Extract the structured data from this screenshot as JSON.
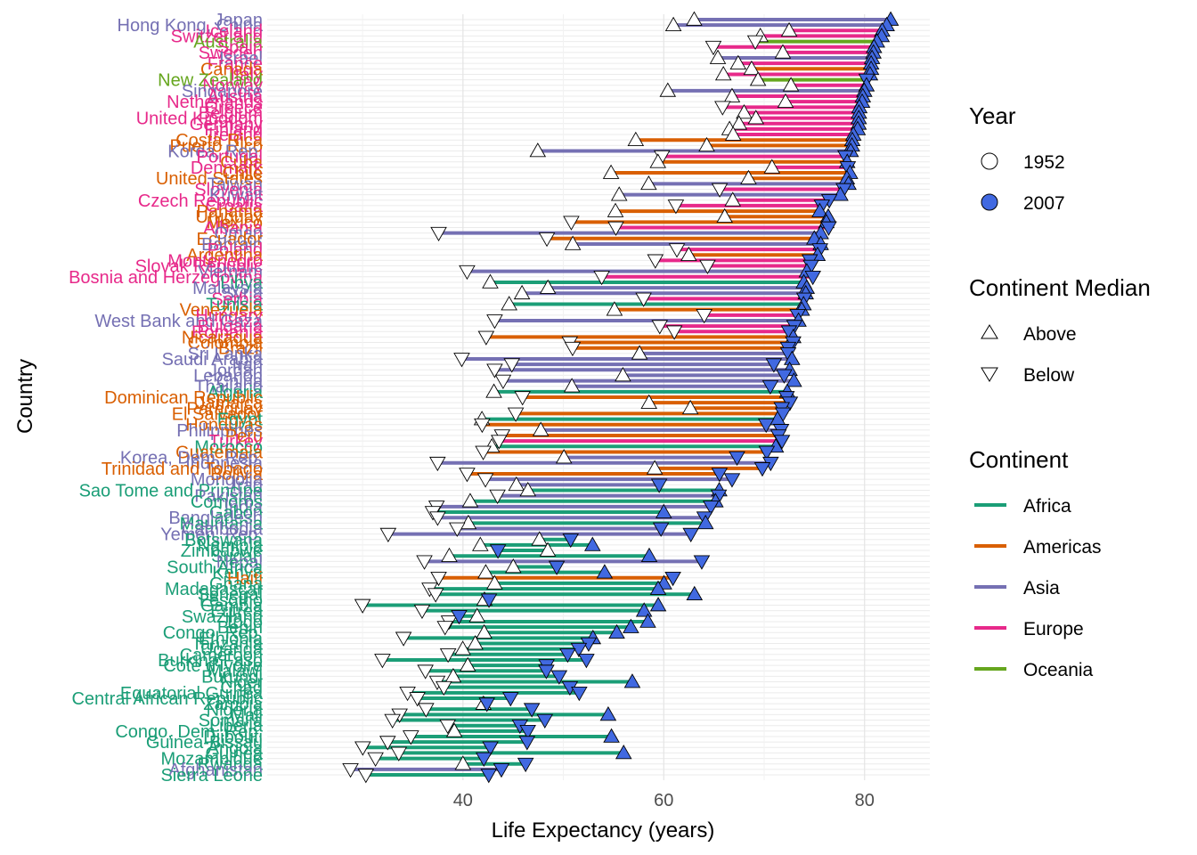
{
  "chart_data": {
    "type": "dumbbell",
    "xlabel": "Life Expectancy (years)",
    "ylabel": "Country",
    "xlim": [
      20.5,
      86.5
    ],
    "xticks": [
      40,
      60,
      80
    ],
    "tick_labels": [
      "40",
      "60",
      "80"
    ],
    "grid": true,
    "legend_position": "right",
    "continent_colors": {
      "Africa": "#1b9e77",
      "Americas": "#d95f02",
      "Asia": "#7570b3",
      "Europe": "#e7298a",
      "Oceania": "#66a61e"
    },
    "year_2007_color": "#4169e1",
    "legend": {
      "year": {
        "title": "Year",
        "items": [
          "1952",
          "2007"
        ]
      },
      "median": {
        "title": "Continent Median",
        "items": [
          "Above",
          "Below"
        ]
      },
      "continent": {
        "title": "Continent",
        "items": [
          "Africa",
          "Americas",
          "Asia",
          "Europe",
          "Oceania"
        ]
      }
    },
    "countries": [
      [
        "Japan",
        "Asia",
        63.03,
        82.603
      ],
      [
        "Hong Kong, China",
        "Asia",
        60.96,
        82.208
      ],
      [
        "Iceland",
        "Europe",
        72.49,
        81.757
      ],
      [
        "Switzerland",
        "Europe",
        69.62,
        81.701
      ],
      [
        "Australia",
        "Oceania",
        69.12,
        81.235
      ],
      [
        "Spain",
        "Europe",
        64.94,
        80.941
      ],
      [
        "Sweden",
        "Europe",
        71.86,
        80.884
      ],
      [
        "Israel",
        "Asia",
        65.39,
        80.745
      ],
      [
        "France",
        "Europe",
        67.41,
        80.657
      ],
      [
        "Canada",
        "Americas",
        68.75,
        80.653
      ],
      [
        "Italy",
        "Europe",
        65.94,
        80.546
      ],
      [
        "New Zealand",
        "Oceania",
        69.39,
        80.204
      ],
      [
        "Norway",
        "Europe",
        72.67,
        80.196
      ],
      [
        "Singapore",
        "Asia",
        60.4,
        79.972
      ],
      [
        "Austria",
        "Europe",
        66.8,
        79.829
      ],
      [
        "Netherlands",
        "Europe",
        72.13,
        79.762
      ],
      [
        "Greece",
        "Europe",
        65.86,
        79.483
      ],
      [
        "Belgium",
        "Europe",
        68.0,
        79.441
      ],
      [
        "United Kingdom",
        "Europe",
        69.18,
        79.425
      ],
      [
        "Germany",
        "Europe",
        67.5,
        79.406
      ],
      [
        "Finland",
        "Europe",
        66.55,
        79.313
      ],
      [
        "Ireland",
        "Europe",
        66.91,
        78.885
      ],
      [
        "Costa Rica",
        "Americas",
        57.21,
        78.782
      ],
      [
        "Puerto Rico",
        "Americas",
        64.28,
        78.746
      ],
      [
        "Korea, Rep.",
        "Asia",
        47.45,
        78.623
      ],
      [
        "Portugal",
        "Europe",
        59.82,
        78.098
      ],
      [
        "Cuba",
        "Americas",
        59.42,
        78.273
      ],
      [
        "Denmark",
        "Europe",
        70.78,
        78.332
      ],
      [
        "Chile",
        "Americas",
        54.75,
        78.553
      ],
      [
        "United States",
        "Americas",
        68.44,
        78.242
      ],
      [
        "Taiwan",
        "Asia",
        58.5,
        78.4
      ],
      [
        "Slovenia",
        "Europe",
        65.57,
        77.926
      ],
      [
        "Kuwait",
        "Asia",
        55.56,
        77.588
      ],
      [
        "Czech Republic",
        "Europe",
        66.87,
        76.486
      ],
      [
        "Croatia",
        "Europe",
        61.21,
        75.748
      ],
      [
        "Panama",
        "Americas",
        55.19,
        75.537
      ],
      [
        "Uruguay",
        "Americas",
        66.07,
        76.384
      ],
      [
        "Mexico",
        "Americas",
        50.79,
        76.195
      ],
      [
        "Albania",
        "Europe",
        55.23,
        76.423
      ],
      [
        "Oman",
        "Asia",
        37.58,
        75.64
      ],
      [
        "Ecuador",
        "Americas",
        48.36,
        74.994
      ],
      [
        "Bahrain",
        "Asia",
        50.94,
        75.635
      ],
      [
        "Poland",
        "Europe",
        61.31,
        75.563
      ],
      [
        "Argentina",
        "Americas",
        62.49,
        75.32
      ],
      [
        "Montenegro",
        "Europe",
        59.16,
        74.543
      ],
      [
        "Slovak Republic",
        "Europe",
        64.36,
        74.663
      ],
      [
        "Vietnam",
        "Asia",
        40.41,
        74.249
      ],
      [
        "Bosnia and Herzegovina",
        "Europe",
        53.82,
        74.852
      ],
      [
        "Libya",
        "Africa",
        42.72,
        73.952
      ],
      [
        "Malaysia",
        "Asia",
        48.46,
        74.241
      ],
      [
        "Syria",
        "Asia",
        45.88,
        74.143
      ],
      [
        "Serbia",
        "Europe",
        57.99,
        74.002
      ],
      [
        "Tunisia",
        "Africa",
        44.6,
        73.923
      ],
      [
        "Venezuela",
        "Americas",
        55.09,
        73.747
      ],
      [
        "Hungary",
        "Europe",
        64.03,
        73.338
      ],
      [
        "West Bank and Gaza",
        "Asia",
        43.16,
        73.422
      ],
      [
        "Bulgaria",
        "Europe",
        59.6,
        73.005
      ],
      [
        "Romania",
        "Europe",
        61.05,
        72.476
      ],
      [
        "Nicaragua",
        "Americas",
        42.31,
        72.899
      ],
      [
        "Colombia",
        "Americas",
        50.64,
        72.889
      ],
      [
        "Brazil",
        "Americas",
        50.92,
        72.39
      ],
      [
        "Sri Lanka",
        "Asia",
        57.59,
        72.396
      ],
      [
        "Saudi Arabia",
        "Asia",
        39.88,
        72.777
      ],
      [
        "Iran",
        "Asia",
        44.87,
        70.964
      ],
      [
        "Jordan",
        "Asia",
        43.16,
        72.535
      ],
      [
        "Lebanon",
        "Asia",
        55.93,
        71.993
      ],
      [
        "China",
        "Asia",
        44.0,
        72.961
      ],
      [
        "Thailand",
        "Asia",
        50.85,
        70.616
      ],
      [
        "Algeria",
        "Africa",
        43.08,
        72.301
      ],
      [
        "Dominican Republic",
        "Americas",
        45.93,
        72.235
      ],
      [
        "Jamaica",
        "Americas",
        58.53,
        72.567
      ],
      [
        "Paraguay",
        "Americas",
        62.65,
        71.752
      ],
      [
        "El Salvador",
        "Americas",
        45.26,
        71.878
      ],
      [
        "Egypt",
        "Africa",
        41.89,
        71.338
      ],
      [
        "Honduras",
        "Americas",
        41.91,
        70.198
      ],
      [
        "Philippines",
        "Asia",
        47.75,
        71.688
      ],
      [
        "Peru",
        "Americas",
        43.9,
        71.421
      ],
      [
        "Turkey",
        "Europe",
        43.59,
        71.777
      ],
      [
        "Morocco",
        "Africa",
        42.87,
        71.164
      ],
      [
        "Guatemala",
        "Americas",
        42.02,
        70.259
      ],
      [
        "Korea, Dem. Rep.",
        "Asia",
        50.06,
        67.297
      ],
      [
        "Indonesia",
        "Asia",
        37.47,
        70.65
      ],
      [
        "Trinidad and Tobago",
        "Americas",
        59.1,
        69.819
      ],
      [
        "Bolivia",
        "Americas",
        40.41,
        65.554
      ],
      [
        "Mongolia",
        "Asia",
        42.24,
        66.803
      ],
      [
        "Iraq",
        "Asia",
        45.32,
        59.545
      ],
      [
        "Sao Tome and Principe",
        "Africa",
        46.47,
        65.528
      ],
      [
        "Pakistan",
        "Asia",
        43.44,
        65.483
      ],
      [
        "Comoros",
        "Africa",
        40.72,
        65.152
      ],
      [
        "India",
        "Asia",
        37.37,
        64.698
      ],
      [
        "Gabon",
        "Africa",
        37.0,
        60.0
      ],
      [
        "Bangladesh",
        "Asia",
        37.48,
        64.062
      ],
      [
        "Mauritania",
        "Africa",
        40.54,
        64.164
      ],
      [
        "Cambodia",
        "Asia",
        39.42,
        59.723
      ],
      [
        "Yemen, Rep.",
        "Asia",
        32.55,
        62.698
      ],
      [
        "Botswana",
        "Africa",
        47.62,
        50.728
      ],
      [
        "Namibia",
        "Africa",
        41.73,
        52.906
      ],
      [
        "Zimbabwe",
        "Africa",
        48.45,
        43.487
      ],
      [
        "Sudan",
        "Africa",
        38.64,
        58.556
      ],
      [
        "Nepal",
        "Asia",
        36.16,
        63.785
      ],
      [
        "South Africa",
        "Africa",
        45.01,
        49.339
      ],
      [
        "Kenya",
        "Africa",
        42.27,
        54.11
      ],
      [
        "Haiti",
        "Americas",
        37.58,
        60.916
      ],
      [
        "Ghana",
        "Africa",
        43.15,
        60.022
      ],
      [
        "Madagascar",
        "Africa",
        36.68,
        59.443
      ],
      [
        "Senegal",
        "Africa",
        37.28,
        63.062
      ],
      [
        "Lesotho",
        "Africa",
        42.14,
        42.592
      ],
      [
        "Gambia",
        "Africa",
        30.0,
        59.448
      ],
      [
        "Eritrea",
        "Africa",
        35.93,
        58.04
      ],
      [
        "Swaziland",
        "Africa",
        41.41,
        39.613
      ],
      [
        "Togo",
        "Africa",
        38.6,
        58.42
      ],
      [
        "Benin",
        "Africa",
        38.22,
        56.728
      ],
      [
        "Congo, Rep.",
        "Africa",
        42.11,
        55.322
      ],
      [
        "Ethiopia",
        "Africa",
        34.08,
        52.947
      ],
      [
        "Tanzania",
        "Africa",
        41.22,
        52.517
      ],
      [
        "Uganda",
        "Africa",
        39.98,
        51.542
      ],
      [
        "Cameroon",
        "Africa",
        38.52,
        50.43
      ],
      [
        "Burkina Faso",
        "Africa",
        31.98,
        52.295
      ],
      [
        "Cote d'Ivoire",
        "Africa",
        40.48,
        48.328
      ],
      [
        "Malawi",
        "Africa",
        36.26,
        48.303
      ],
      [
        "Burundi",
        "Africa",
        39.03,
        49.58
      ],
      [
        "Niger",
        "Africa",
        37.44,
        56.867
      ],
      [
        "Chad",
        "Africa",
        38.09,
        50.651
      ],
      [
        "Equatorial Guinea",
        "Africa",
        34.48,
        51.579
      ],
      [
        "Central African Republic",
        "Africa",
        35.46,
        44.741
      ],
      [
        "Zambia",
        "Africa",
        42.04,
        42.384
      ],
      [
        "Nigeria",
        "Africa",
        36.32,
        46.859
      ],
      [
        "Mali",
        "Africa",
        33.69,
        54.467
      ],
      [
        "Somalia",
        "Africa",
        32.98,
        48.159
      ],
      [
        "Liberia",
        "Africa",
        38.48,
        45.678
      ],
      [
        "Congo, Dem. Rep.",
        "Africa",
        39.14,
        46.462
      ],
      [
        "Djibouti",
        "Africa",
        34.81,
        54.791
      ],
      [
        "Guinea-Bissau",
        "Africa",
        32.5,
        46.388
      ],
      [
        "Angola",
        "Africa",
        30.02,
        42.731
      ],
      [
        "Guinea",
        "Africa",
        33.61,
        56.007
      ],
      [
        "Mozambique",
        "Africa",
        31.29,
        42.082
      ],
      [
        "Rwanda",
        "Africa",
        40.0,
        46.242
      ],
      [
        "Afghanistan",
        "Asia",
        28.8,
        43.828
      ],
      [
        "Sierra Leone",
        "Africa",
        30.33,
        42.568
      ]
    ]
  }
}
